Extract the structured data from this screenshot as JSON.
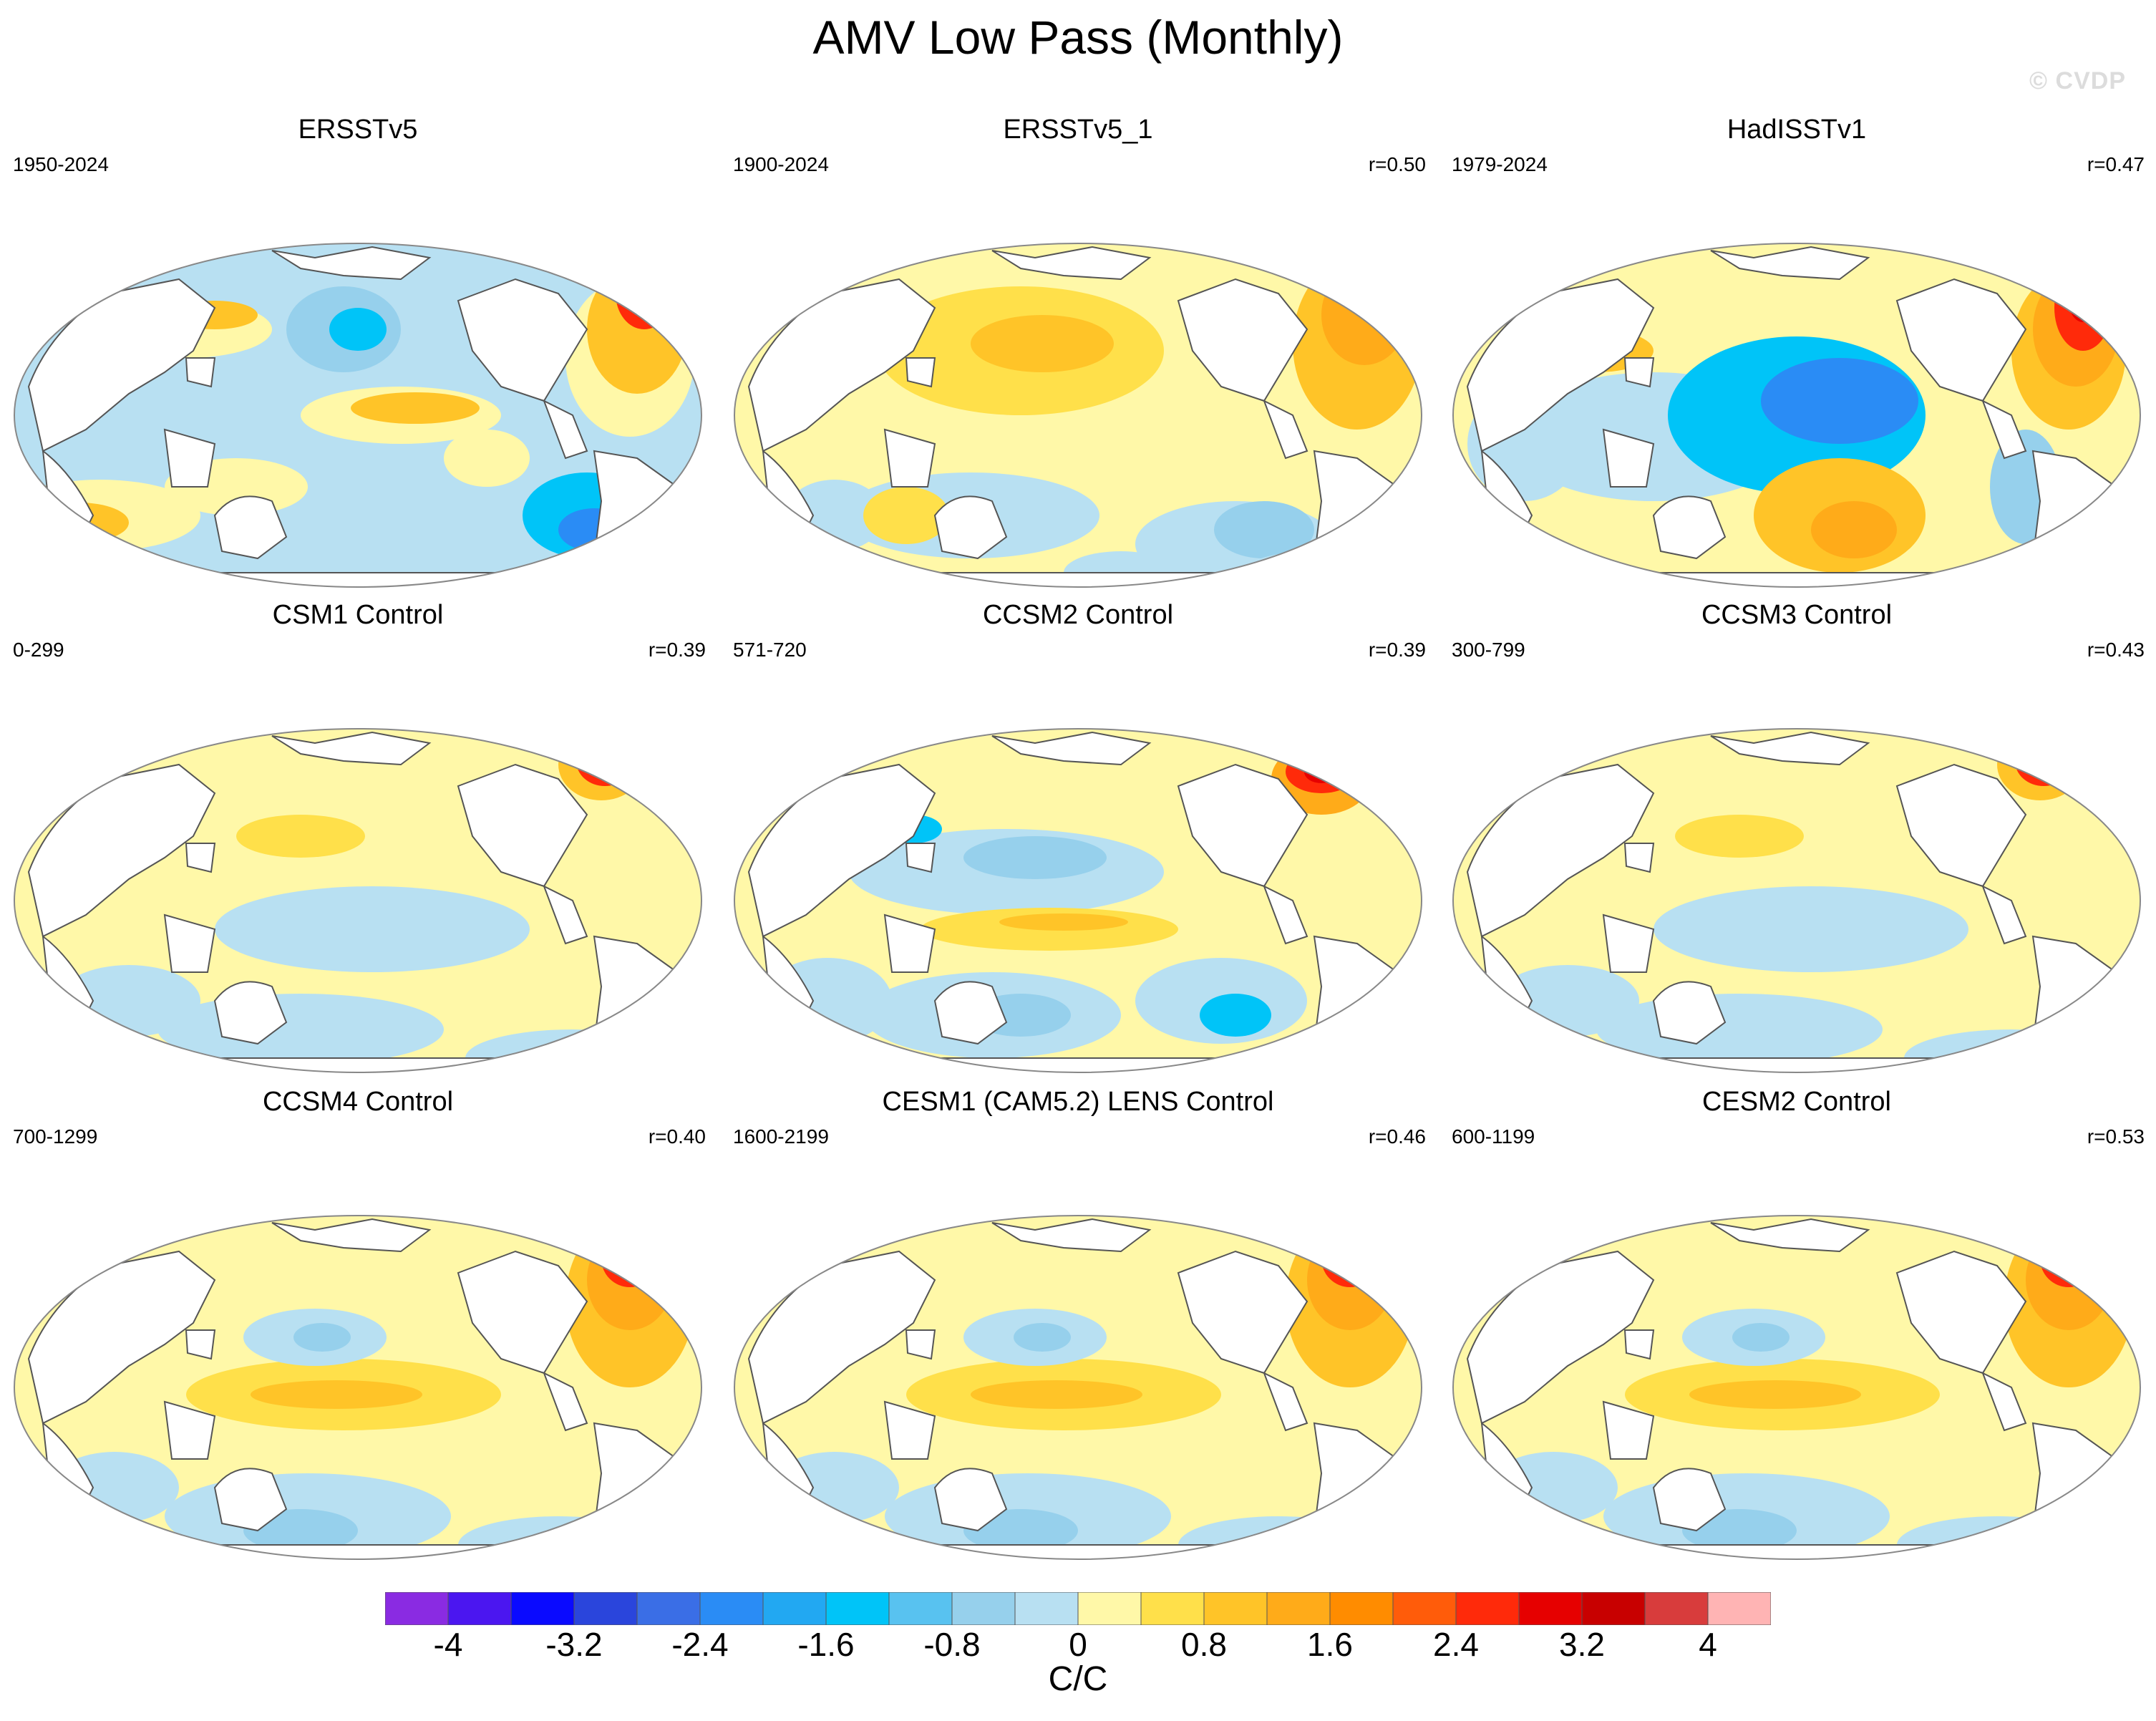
{
  "title": "AMV Low Pass (Monthly)",
  "watermark": "© CVDP",
  "panels": [
    {
      "title": "ERSSTv5",
      "years": "1950-2024",
      "corr": "",
      "style": "obs"
    },
    {
      "title": "ERSSTv5_1",
      "years": "1900-2024",
      "corr": "r=0.50",
      "style": "warmobs"
    },
    {
      "title": "HadISSTv1",
      "years": "1979-2024",
      "corr": "r=0.47",
      "style": "hadisst"
    },
    {
      "title": "CSM1 Control",
      "years": "0-299",
      "corr": "r=0.39",
      "style": "pale"
    },
    {
      "title": "CCSM2 Control",
      "years": "571-720",
      "corr": "r=0.39",
      "style": "noisy"
    },
    {
      "title": "CCSM3 Control",
      "years": "300-799",
      "corr": "r=0.43",
      "style": "pale"
    },
    {
      "title": "CCSM4 Control",
      "years": "700-1299",
      "corr": "r=0.40",
      "style": "model"
    },
    {
      "title": "CESM1 (CAM5.2) LENS Control",
      "years": "1600-2199",
      "corr": "r=0.46",
      "style": "model"
    },
    {
      "title": "CESM2 Control",
      "years": "600-1199",
      "corr": "r=0.53",
      "style": "model"
    }
  ],
  "colorbar": {
    "units": "C/C",
    "colors": [
      "#8a2be2",
      "#4b16f0",
      "#0a0aff",
      "#2a45dc",
      "#3a6ee6",
      "#2a8cf5",
      "#22a8f2",
      "#00c4f8",
      "#58c2f0",
      "#96d0ec",
      "#b8e0f2",
      "#fff8a8",
      "#ffe04a",
      "#ffc428",
      "#ffab19",
      "#ff8c00",
      "#ff5c0a",
      "#ff2a0a",
      "#e60000",
      "#c80000",
      "#d83c3c",
      "#ffb4b4"
    ],
    "tick_labels": [
      "-4",
      "-3.2",
      "-2.4",
      "-1.6",
      "-0.8",
      "0",
      "0.8",
      "1.6",
      "2.4",
      "3.2",
      "4"
    ]
  }
}
